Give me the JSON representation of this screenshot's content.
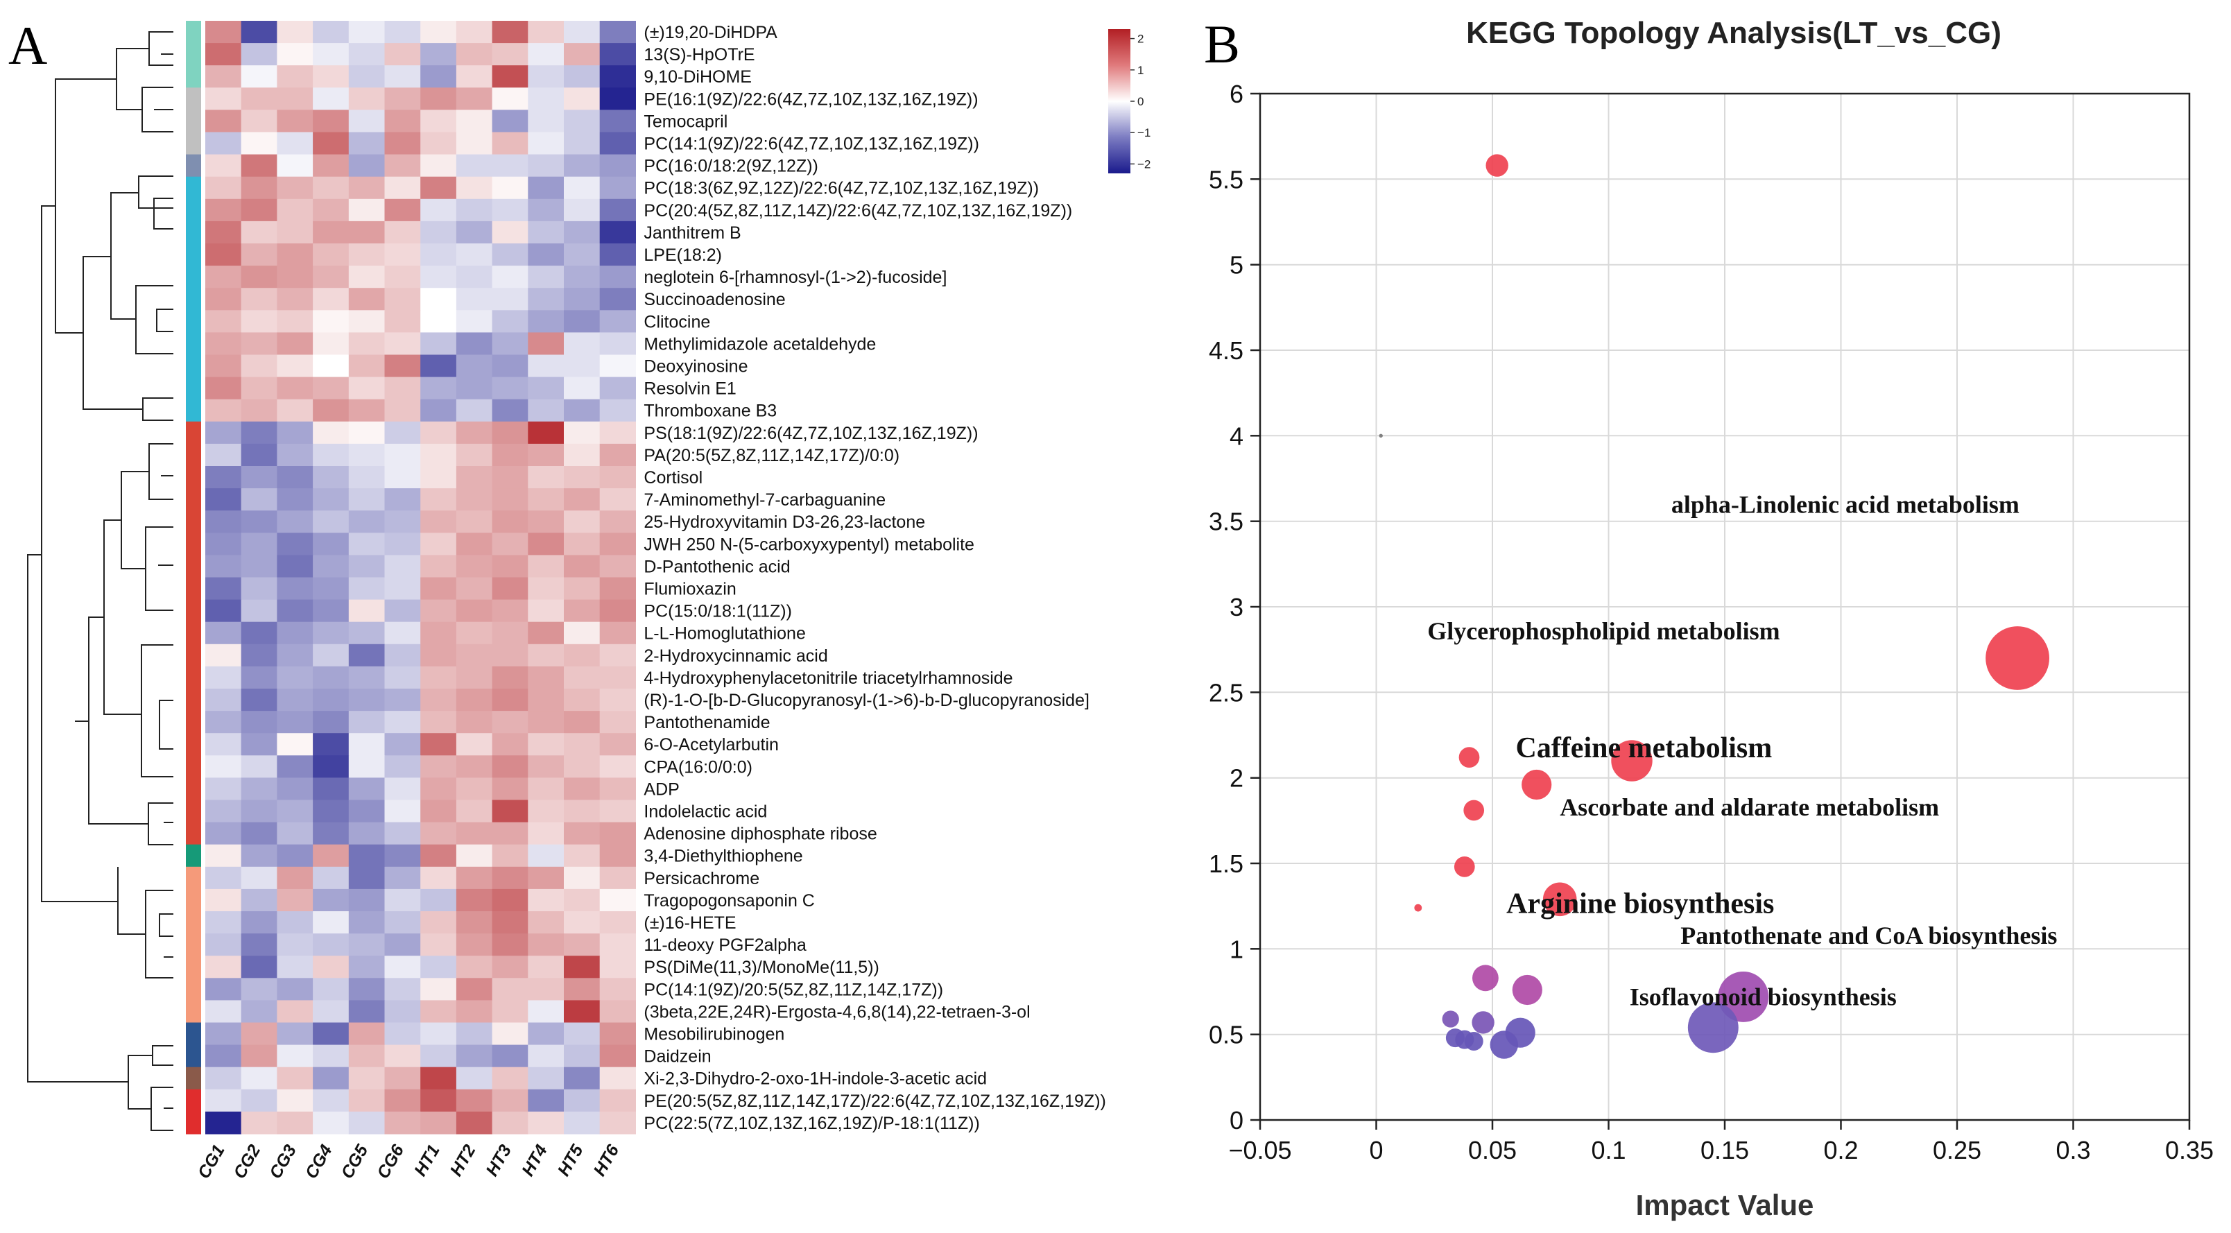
{
  "panel_a_label": "A",
  "panel_b_label": "B",
  "chart_data": [
    {
      "type": "heatmap",
      "title": "",
      "columns": [
        "CG1",
        "CG2",
        "CG3",
        "CG4",
        "CG5",
        "CG6",
        "HT1",
        "HT2",
        "HT3",
        "HT4",
        "HT5",
        "HT6"
      ],
      "rows": [
        "(±)19,20-DiHDPA",
        "13(S)-HpOTrE",
        "9,10-DiHOME",
        "PE(16:1(9Z)/22:6(4Z,7Z,10Z,13Z,16Z,19Z))",
        "Temocapril",
        "PC(14:1(9Z)/22:6(4Z,7Z,10Z,13Z,16Z,19Z))",
        "PC(16:0/18:2(9Z,12Z))",
        "PC(18:3(6Z,9Z,12Z)/22:6(4Z,7Z,10Z,13Z,16Z,19Z))",
        "PC(20:4(5Z,8Z,11Z,14Z)/22:6(4Z,7Z,10Z,13Z,16Z,19Z))",
        "Janthitrem B",
        "LPE(18:2)",
        "neglotein 6-[rhamnosyl-(1->2)-fucoside]",
        "Succinoadenosine",
        "Clitocine",
        "Methylimidazole acetaldehyde",
        "Deoxyinosine",
        "Resolvin E1",
        "Thromboxane B3",
        "PS(18:1(9Z)/22:6(4Z,7Z,10Z,13Z,16Z,19Z))",
        "PA(20:5(5Z,8Z,11Z,14Z,17Z)/0:0)",
        "Cortisol",
        "7-Aminomethyl-7-carbaguanine",
        "25-Hydroxyvitamin D3-26,23-lactone",
        "JWH 250 N-(5-carboxyxypentyl) metabolite",
        "D-Pantothenic acid",
        "Flumioxazin",
        "PC(15:0/18:1(11Z))",
        "L-L-Homoglutathione",
        "2-Hydroxycinnamic acid",
        "4-Hydroxyphenylacetonitrile triacetylrhamnoside",
        "(R)-1-O-[b-D-Glucopyranosyl-(1->6)-b-D-glucopyranoside]",
        "Pantothenamide",
        "6-O-Acetylarbutin",
        "CPA(16:0/0:0)",
        "ADP",
        "Indolelactic acid",
        "Adenosine diphosphate ribose",
        "3,4-Diethylthiophene",
        "Persicachrome",
        "Tragopogonsaponin C",
        "(±)16-HETE",
        "11-deoxy PGF2alpha",
        "PS(DiMe(11,3)/MonoMe(11,5))",
        "PC(14:1(9Z)/20:5(5Z,8Z,11Z,14Z,17Z))",
        "(3beta,22E,24R)-Ergosta-4,6,8(14),22-tetraen-3-ol",
        "Mesobilirubinogen",
        "Daidzein",
        "Xi-2,3-Dihydro-2-oxo-1H-indole-3-acetic acid",
        "PE(20:5(5Z,8Z,11Z,14Z,17Z)/22:6(4Z,7Z,10Z,13Z,16Z,19Z))",
        "PC(22:5(7Z,10Z,13Z,16Z,19Z)/P-18:1(11Z))"
      ],
      "values": [
        [
          1.2,
          -1.8,
          0.3,
          -0.5,
          -0.2,
          -0.4,
          0.2,
          0.4,
          1.6,
          0.5,
          -0.3,
          -1.3
        ],
        [
          1.5,
          -0.6,
          0.1,
          -0.2,
          -0.4,
          0.6,
          -0.8,
          0.7,
          0.6,
          -0.2,
          0.8,
          -1.8
        ],
        [
          0.8,
          -0.1,
          0.6,
          0.4,
          -0.5,
          -0.3,
          -1,
          0.4,
          1.8,
          -0.4,
          -0.6,
          -2.1
        ],
        [
          0.4,
          0.7,
          0.7,
          -0.2,
          0.5,
          0.8,
          1.1,
          0.9,
          0.1,
          -0.3,
          0.3,
          -2.2
        ],
        [
          1.1,
          0.5,
          1,
          1.2,
          -0.3,
          1,
          0.4,
          0.2,
          -1,
          -0.3,
          -0.5,
          -1.4
        ],
        [
          -0.6,
          0.1,
          -0.3,
          1.5,
          -0.7,
          1.2,
          0.5,
          0.2,
          0.7,
          -0.2,
          -0.5,
          -1.6
        ],
        [
          0.4,
          1.4,
          -0.1,
          1,
          -0.9,
          0.8,
          0.2,
          -0.4,
          -0.4,
          -0.5,
          -0.8,
          -1
        ],
        [
          0.6,
          1.1,
          0.8,
          0.6,
          0.8,
          0.3,
          1.3,
          0.3,
          0.1,
          -1,
          -0.2,
          -0.9
        ],
        [
          1.1,
          1.3,
          0.6,
          0.8,
          0.2,
          1.2,
          -0.3,
          -0.5,
          -0.4,
          -0.8,
          -0.3,
          -1.4
        ],
        [
          1.4,
          0.5,
          0.6,
          1,
          1,
          0.5,
          -0.5,
          -0.8,
          0.3,
          -0.6,
          -0.8,
          -2
        ],
        [
          1.5,
          0.8,
          1,
          0.7,
          0.5,
          0.4,
          -0.4,
          -0.3,
          -0.6,
          -1,
          -0.7,
          -1.6
        ],
        [
          0.9,
          1.1,
          1,
          0.8,
          0.3,
          0.5,
          -0.3,
          -0.4,
          -0.2,
          -0.5,
          -0.8,
          -1
        ],
        [
          1,
          0.6,
          0.8,
          0.4,
          0.9,
          0.6,
          0,
          -0.3,
          -0.3,
          -0.7,
          -0.9,
          -1.3
        ],
        [
          0.7,
          0.4,
          0.5,
          0.1,
          0.2,
          0.6,
          0,
          -0.2,
          -0.6,
          -0.9,
          -1.1,
          -0.8
        ],
        [
          0.9,
          0.8,
          1,
          0.2,
          0.5,
          0.4,
          -0.6,
          -1.1,
          -0.8,
          1.2,
          -0.3,
          -0.4
        ],
        [
          1,
          0.5,
          0.3,
          0,
          0.7,
          1.3,
          -1.6,
          -0.9,
          -1,
          -0.3,
          -0.3,
          -0.1
        ],
        [
          1.2,
          0.7,
          0.9,
          0.8,
          0.4,
          0.6,
          -0.8,
          -0.9,
          -0.8,
          -0.7,
          -0.2,
          -0.7
        ],
        [
          0.7,
          0.8,
          0.5,
          1.1,
          0.9,
          0.6,
          -1,
          -0.5,
          -1.2,
          -0.6,
          -0.9,
          -0.5
        ],
        [
          -0.9,
          -1.3,
          -0.9,
          0.2,
          0.1,
          -0.5,
          0.5,
          0.9,
          1.1,
          2.1,
          0.2,
          0.4
        ],
        [
          -0.5,
          -1.4,
          -0.8,
          -0.4,
          -0.3,
          -0.2,
          0.3,
          0.6,
          1,
          0.9,
          0.3,
          0.9
        ],
        [
          -1.3,
          -1,
          -1.2,
          -0.7,
          -0.4,
          -0.2,
          0.3,
          0.8,
          0.9,
          0.5,
          0.6,
          0.7
        ],
        [
          -1.5,
          -0.7,
          -1.1,
          -0.8,
          -0.5,
          -0.8,
          0.6,
          0.8,
          0.9,
          0.7,
          0.9,
          0.5
        ],
        [
          -1.2,
          -1.1,
          -0.9,
          -0.6,
          -0.8,
          -0.7,
          0.8,
          0.7,
          1,
          0.9,
          0.5,
          0.8
        ],
        [
          -1.1,
          -0.9,
          -1.3,
          -1,
          -0.5,
          -0.6,
          0.5,
          1,
          0.8,
          1.2,
          0.7,
          1
        ],
        [
          -1,
          -0.9,
          -1.4,
          -0.9,
          -0.7,
          -0.4,
          0.7,
          0.9,
          1,
          0.6,
          1,
          0.8
        ],
        [
          -1.4,
          -0.7,
          -1.1,
          -1,
          -0.5,
          -0.4,
          1,
          0.8,
          1.2,
          0.5,
          0.7,
          1.1
        ],
        [
          -1.6,
          -0.6,
          -1.3,
          -1.1,
          0.3,
          -0.7,
          0.8,
          1,
          0.9,
          0.4,
          0.9,
          1.2
        ],
        [
          -0.9,
          -1.4,
          -1,
          -0.8,
          -0.7,
          -0.3,
          0.9,
          0.7,
          0.8,
          1.1,
          0.2,
          0.9
        ],
        [
          0.2,
          -1.3,
          -0.9,
          -0.5,
          -1.4,
          -0.6,
          0.9,
          0.8,
          0.8,
          0.6,
          0.7,
          0.5
        ],
        [
          -0.4,
          -1.1,
          -0.8,
          -0.9,
          -0.8,
          -0.5,
          0.7,
          0.8,
          1.1,
          0.9,
          0.6,
          0.6
        ],
        [
          -0.6,
          -1.4,
          -0.9,
          -1,
          -0.9,
          -0.8,
          0.8,
          1,
          1.2,
          0.9,
          0.7,
          0.5
        ],
        [
          -0.8,
          -1.1,
          -1,
          -1.2,
          -0.6,
          -0.4,
          0.7,
          0.9,
          0.8,
          0.9,
          1,
          0.6
        ],
        [
          -0.4,
          -1,
          0.1,
          -1.8,
          -0.2,
          -0.8,
          1.5,
          0.4,
          0.9,
          0.5,
          0.6,
          0.8
        ],
        [
          -0.2,
          -0.4,
          -1.2,
          -1.9,
          -0.2,
          -0.6,
          0.8,
          0.9,
          1.2,
          0.8,
          0.6,
          0.4
        ],
        [
          -0.5,
          -0.8,
          -1,
          -1.5,
          -0.9,
          -0.3,
          0.9,
          0.7,
          1,
          0.6,
          0.9,
          0.7
        ],
        [
          -0.7,
          -0.9,
          -0.8,
          -1.4,
          -1.1,
          -0.2,
          1,
          0.6,
          1.8,
          0.5,
          0.6,
          0.5
        ],
        [
          -0.9,
          -1.2,
          -0.7,
          -1.3,
          -0.9,
          -0.6,
          0.8,
          0.9,
          0.9,
          0.4,
          0.9,
          1
        ],
        [
          0.2,
          -0.9,
          -1.1,
          1,
          -1.4,
          -1.2,
          1.3,
          0.2,
          0.7,
          -0.3,
          0.5,
          1
        ],
        [
          -0.5,
          -0.3,
          1,
          -0.5,
          -1.4,
          -0.8,
          0.4,
          1,
          1.2,
          1,
          0.2,
          0.6
        ],
        [
          0.3,
          -0.7,
          0.8,
          -0.9,
          -1,
          -0.4,
          -0.6,
          1.3,
          1.5,
          0.4,
          0.5,
          0.1
        ],
        [
          -0.5,
          -1,
          -0.6,
          -0.2,
          -0.9,
          -0.6,
          0.6,
          1.1,
          1.4,
          0.7,
          0.4,
          0.5
        ],
        [
          -0.6,
          -1.3,
          -0.5,
          -0.6,
          -0.7,
          -0.9,
          0.5,
          1,
          1.3,
          0.9,
          0.8,
          0.4
        ],
        [
          0.4,
          -1.5,
          -0.4,
          0.5,
          -0.8,
          -0.2,
          -0.5,
          0.7,
          0.9,
          0.5,
          1.9,
          0.4
        ],
        [
          -1,
          -0.7,
          -0.9,
          -0.5,
          -1.1,
          -0.5,
          0.2,
          1.2,
          0.6,
          0.6,
          1.1,
          0.6
        ],
        [
          -0.3,
          -0.8,
          0.6,
          -0.4,
          -1.3,
          -0.6,
          0.7,
          0.9,
          0.6,
          -0.2,
          2,
          0.7
        ],
        [
          -0.9,
          0.9,
          -0.8,
          -1.5,
          0.9,
          -0.5,
          -0.3,
          -0.6,
          0.2,
          -0.8,
          -0.5,
          1.1
        ],
        [
          -1.1,
          1,
          -0.2,
          -0.4,
          0.7,
          0.4,
          -0.5,
          -0.9,
          -1.1,
          -0.3,
          -0.6,
          1.2
        ],
        [
          -0.5,
          -0.2,
          0.6,
          -1,
          0.5,
          0.8,
          1.9,
          -0.4,
          0.6,
          -0.5,
          -1.2,
          0.3
        ],
        [
          -0.3,
          -0.5,
          0.2,
          -0.4,
          0.6,
          1.1,
          1.7,
          1.2,
          0.8,
          -1.2,
          -0.6,
          0.6
        ],
        [
          -2.2,
          0.5,
          0.6,
          -0.2,
          -0.4,
          0.8,
          0.9,
          1.6,
          0.6,
          0.4,
          -0.4,
          0.5
        ]
      ],
      "row_clusters": [
        {
          "color": "#7fd3c0",
          "rows": 3
        },
        {
          "color": "#c0c0c0",
          "rows": 3
        },
        {
          "color": "#7f8fb0",
          "rows": 1
        },
        {
          "color": "#31b8d4",
          "rows": 11
        },
        {
          "color": "#d94535",
          "rows": 19
        },
        {
          "color": "#169a78",
          "rows": 1
        },
        {
          "color": "#f59a7a",
          "rows": 7
        },
        {
          "color": "#2c5590",
          "rows": 2
        },
        {
          "color": "#8a5a4a",
          "rows": 1
        },
        {
          "color": "#e02d2d",
          "rows": 2
        }
      ],
      "colorbar": {
        "ticks": [
          2,
          1,
          0,
          -1,
          -2
        ],
        "tick_labels": [
          "2",
          "1",
          "0",
          "−1",
          "−2"
        ],
        "range": [
          -2.3,
          2.3
        ],
        "high_color": "#b21f24",
        "mid_color": "#ffffff",
        "low_color": "#1a1a8c"
      }
    },
    {
      "type": "scatter",
      "title": "KEGG Topology Analysis(LT_vs_CG)",
      "xlabel": "Impact Value",
      "ylabel": "",
      "xlim": [
        -0.05,
        0.35
      ],
      "ylim": [
        0,
        6
      ],
      "xticks": [
        -0.05,
        0,
        0.05,
        0.1,
        0.15,
        0.2,
        0.25,
        0.3,
        0.35
      ],
      "xtick_labels": [
        "−0.05",
        "0",
        "0.05",
        "0.1",
        "0.15",
        "0.2",
        "0.25",
        "0.3",
        "0.35"
      ],
      "yticks": [
        0,
        0.5,
        1,
        1.5,
        2,
        2.5,
        3,
        3.5,
        4,
        4.5,
        5,
        5.5,
        6
      ],
      "ytick_labels": [
        "0",
        "0.5",
        "1",
        "1.5",
        "2",
        "2.5",
        "3",
        "3.5",
        "4",
        "4.5",
        "5",
        "5.5",
        "6"
      ],
      "grid": true,
      "points": [
        {
          "x": 0.052,
          "y": 5.58,
          "size": 12,
          "color": "#ef4150"
        },
        {
          "x": 0.002,
          "y": 4.0,
          "size": 2,
          "color": "#777777"
        },
        {
          "x": 0.276,
          "y": 2.7,
          "size": 34,
          "color": "#ef4150"
        },
        {
          "x": 0.11,
          "y": 2.1,
          "size": 22,
          "color": "#ef4150"
        },
        {
          "x": 0.04,
          "y": 2.12,
          "size": 11,
          "color": "#ef4150"
        },
        {
          "x": 0.069,
          "y": 1.96,
          "size": 16,
          "color": "#ef4150"
        },
        {
          "x": 0.042,
          "y": 1.81,
          "size": 11,
          "color": "#ef4150"
        },
        {
          "x": 0.038,
          "y": 1.48,
          "size": 11,
          "color": "#ef4150"
        },
        {
          "x": 0.079,
          "y": 1.29,
          "size": 18,
          "color": "#ef4150"
        },
        {
          "x": 0.018,
          "y": 1.24,
          "size": 4,
          "color": "#ef4150"
        },
        {
          "x": 0.047,
          "y": 0.83,
          "size": 14,
          "color": "#b04aa6"
        },
        {
          "x": 0.065,
          "y": 0.76,
          "size": 16,
          "color": "#b04aa6"
        },
        {
          "x": 0.158,
          "y": 0.72,
          "size": 27,
          "color": "#a04cb0"
        },
        {
          "x": 0.145,
          "y": 0.54,
          "size": 27,
          "color": "#6f59b8"
        },
        {
          "x": 0.032,
          "y": 0.59,
          "size": 9,
          "color": "#7a55b5"
        },
        {
          "x": 0.046,
          "y": 0.57,
          "size": 12,
          "color": "#7a55b5"
        },
        {
          "x": 0.062,
          "y": 0.51,
          "size": 16,
          "color": "#6656b7"
        },
        {
          "x": 0.034,
          "y": 0.48,
          "size": 10,
          "color": "#6656b7"
        },
        {
          "x": 0.038,
          "y": 0.47,
          "size": 10,
          "color": "#6656b7"
        },
        {
          "x": 0.042,
          "y": 0.46,
          "size": 10,
          "color": "#6656b7"
        },
        {
          "x": 0.055,
          "y": 0.44,
          "size": 15,
          "color": "#6656b7"
        }
      ],
      "annotations": [
        {
          "text": "alpha-Linolenic acid metabolism",
          "x": 0.127,
          "y": 3.55,
          "size": 36
        },
        {
          "text": "Glycerophospholipid metabolism",
          "x": 0.022,
          "y": 2.81,
          "size": 36
        },
        {
          "text": "Caffeine metabolism",
          "x": 0.06,
          "y": 2.12,
          "size": 42
        },
        {
          "text": "Ascorbate and aldarate metabolism",
          "x": 0.079,
          "y": 1.78,
          "size": 36
        },
        {
          "text": "Arginine biosynthesis",
          "x": 0.056,
          "y": 1.21,
          "size": 42
        },
        {
          "text": "Pantothenate and CoA biosynthesis",
          "x": 0.131,
          "y": 1.03,
          "size": 36
        },
        {
          "text": "Isoflavonoid biosynthesis",
          "x": 0.109,
          "y": 0.67,
          "size": 36
        }
      ]
    }
  ]
}
